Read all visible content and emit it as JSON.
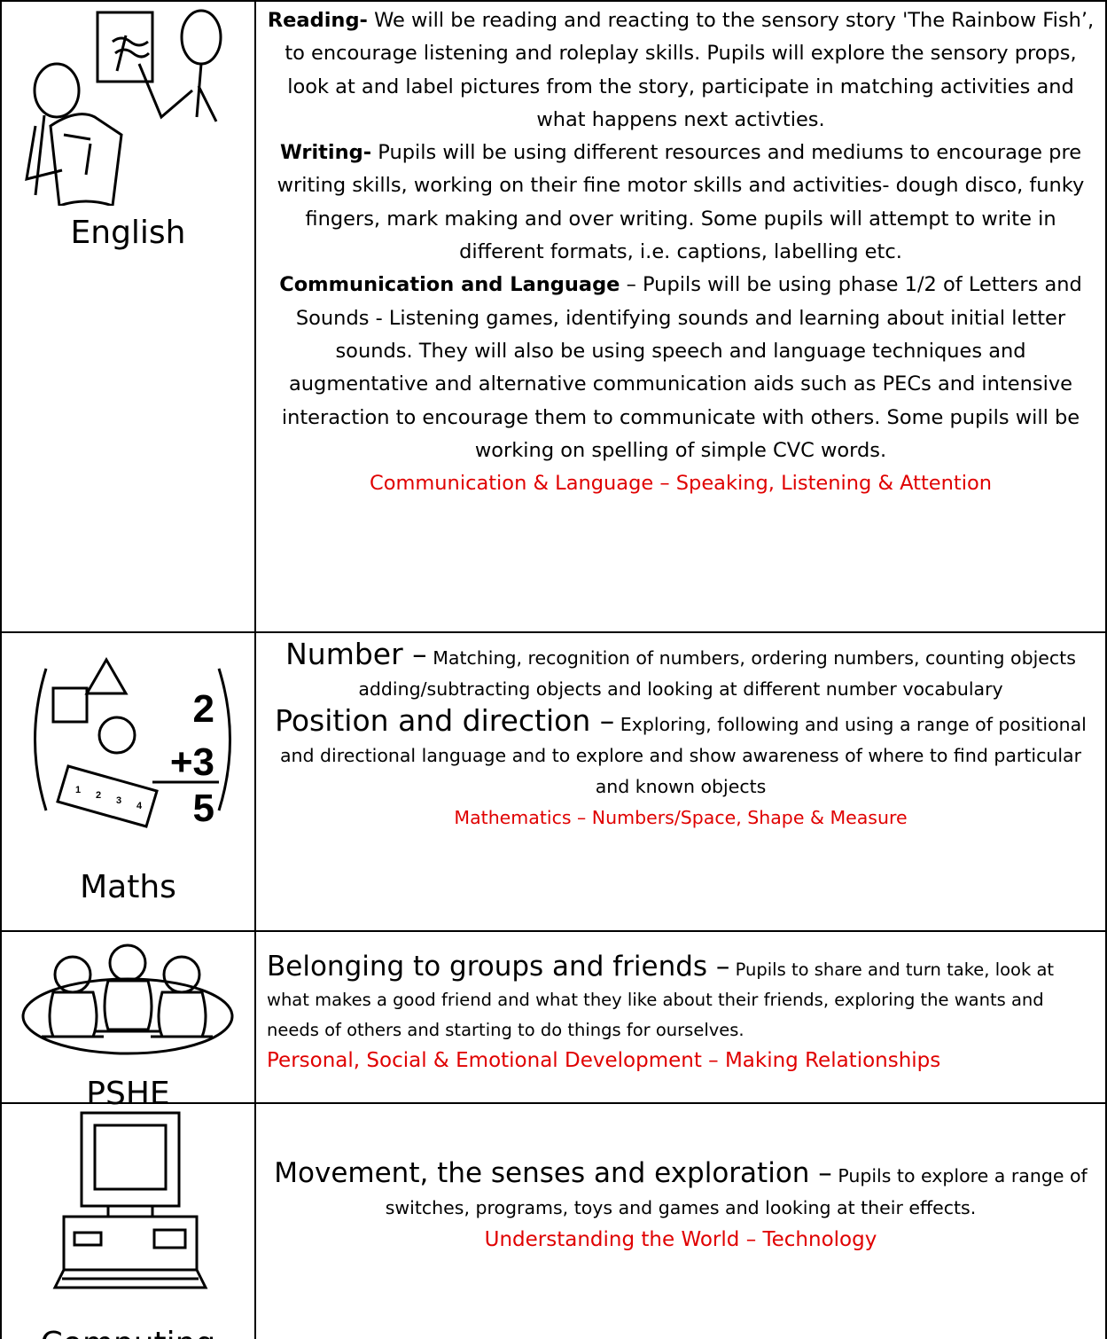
{
  "rows": [
    {
      "subject": "English",
      "paragraphs": [
        {
          "heading": "Reading-",
          "text": "We will be reading and reacting to the sensory story 'The Rainbow Fish’, to encourage listening and roleplay skills. Pupils will explore the sensory props, look at and label pictures from the story, participate in matching activities and what happens next activties."
        },
        {
          "heading": "Writing-",
          "text": "Pupils will be using different resources and mediums to encourage pre writing skills, working on their fine motor skills and activities- dough disco, funky fingers, mark making and over writing. Some pupils will attempt to write in different formats, i.e. captions, labelling etc."
        },
        {
          "heading": "Communication and Language",
          "text": "– Pupils will be using phase 1/2 of Letters and Sounds - Listening games, identifying sounds and learning about initial letter sounds. They will also be using speech and language techniques and augmentative and alternative communication aids such as PECs and intensive interaction to encourage them to communicate with others. Some pupils will be working on spelling of simple CVC words."
        }
      ],
      "strand": "Communication & Language – Speaking, Listening & Attention"
    },
    {
      "subject": "Maths",
      "icon_text": [
        "2",
        "+3",
        "5"
      ],
      "ruler_text": [
        "1",
        "2",
        "3",
        "4"
      ],
      "paragraphs": [
        {
          "heading": "Number –",
          "text": "Matching, recognition of numbers, ordering numbers, counting objects adding/subtracting objects and looking at different number vocabulary"
        },
        {
          "heading": "Position and direction –",
          "text": "Exploring, following and using a range of positional and directional language and to explore and show awareness of where to find particular and known objects"
        }
      ],
      "strand": "Mathematics – Numbers/Space, Shape & Measure"
    },
    {
      "subject": "PSHE",
      "paragraphs": [
        {
          "heading": "Belonging to groups and friends –",
          "text": "Pupils to share and turn take, look at what makes a good friend and what they like about their friends, exploring the wants and needs of others and starting to do things for ourselves."
        }
      ],
      "strand": "Personal, Social & Emotional Development – Making Relationships"
    },
    {
      "subject": "Computing",
      "paragraphs": [
        {
          "heading": "Movement, the senses and exploration –",
          "text": "Pupils to explore a range of switches, programs, toys and games and looking at their effects."
        }
      ],
      "strand": "Understanding the World – Technology"
    }
  ]
}
